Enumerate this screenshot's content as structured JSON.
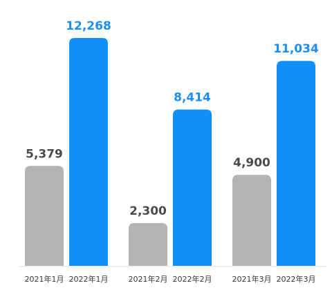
{
  "chart_data": {
    "type": "bar",
    "categories": [
      "2021年1月",
      "2022年1月",
      "2021年2月",
      "2022年2月",
      "2021年3月",
      "2022年3月"
    ],
    "values": [
      5379,
      12268,
      2300,
      8414,
      4900,
      11034
    ],
    "value_labels": [
      "5,379",
      "12,268",
      "2,300",
      "8,414",
      "4,900",
      "11,034"
    ],
    "colors": [
      "#b3b3b3",
      "#0f8ff7",
      "#b3b3b3",
      "#0f8ff7",
      "#b3b3b3",
      "#0f8ff7"
    ],
    "label_colors": [
      "#4a4a4a",
      "#1b8ef0",
      "#4a4a4a",
      "#1b8ef0",
      "#4a4a4a",
      "#1b8ef0"
    ]
  }
}
